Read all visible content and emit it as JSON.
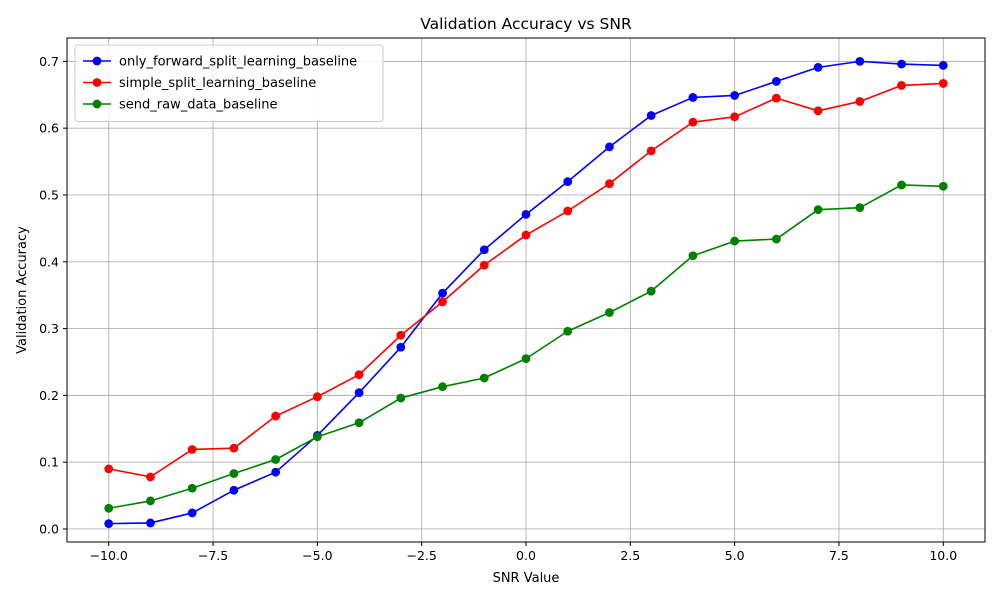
{
  "chart_data": {
    "type": "line",
    "title": "Validation Accuracy vs SNR",
    "xlabel": "SNR Value",
    "ylabel": "Validation Accuracy",
    "xlim": [
      -11,
      11
    ],
    "ylim": [
      -0.0195,
      0.735
    ],
    "x_ticks": [
      -10.0,
      -7.5,
      -5.0,
      -2.5,
      0.0,
      2.5,
      5.0,
      7.5,
      10.0
    ],
    "x_tick_labels": [
      "−10.0",
      "−7.5",
      "−5.0",
      "−2.5",
      "0.0",
      "2.5",
      "5.0",
      "7.5",
      "10.0"
    ],
    "y_ticks": [
      0.0,
      0.1,
      0.2,
      0.3,
      0.4,
      0.5,
      0.6,
      0.7
    ],
    "y_tick_labels": [
      "0.0",
      "0.1",
      "0.2",
      "0.3",
      "0.4",
      "0.5",
      "0.6",
      "0.7"
    ],
    "grid": true,
    "legend_position": "top-left",
    "x": [
      -10,
      -9,
      -8,
      -7,
      -6,
      -5,
      -4,
      -3,
      -2,
      -1,
      0,
      1,
      2,
      3,
      4,
      5,
      6,
      7,
      8,
      9,
      10
    ],
    "series": [
      {
        "name": "only_forward_split_learning_baseline",
        "color": "#0000ff",
        "values": [
          0.008,
          0.009,
          0.024,
          0.058,
          0.085,
          0.14,
          0.204,
          0.272,
          0.353,
          0.418,
          0.471,
          0.52,
          0.572,
          0.619,
          0.646,
          0.649,
          0.67,
          0.691,
          0.7,
          0.696,
          0.694
        ]
      },
      {
        "name": "simple_split_learning_baseline",
        "color": "#ff0000",
        "values": [
          0.09,
          0.078,
          0.119,
          0.121,
          0.169,
          0.198,
          0.231,
          0.29,
          0.34,
          0.395,
          0.44,
          0.476,
          0.517,
          0.566,
          0.609,
          0.617,
          0.645,
          0.626,
          0.64,
          0.664,
          0.667
        ]
      },
      {
        "name": "send_raw_data_baseline",
        "color": "#008000",
        "values": [
          0.031,
          0.042,
          0.061,
          0.083,
          0.104,
          0.138,
          0.159,
          0.196,
          0.213,
          0.226,
          0.255,
          0.296,
          0.324,
          0.356,
          0.409,
          0.431,
          0.434,
          0.478,
          0.481,
          0.515,
          0.513
        ]
      }
    ]
  }
}
